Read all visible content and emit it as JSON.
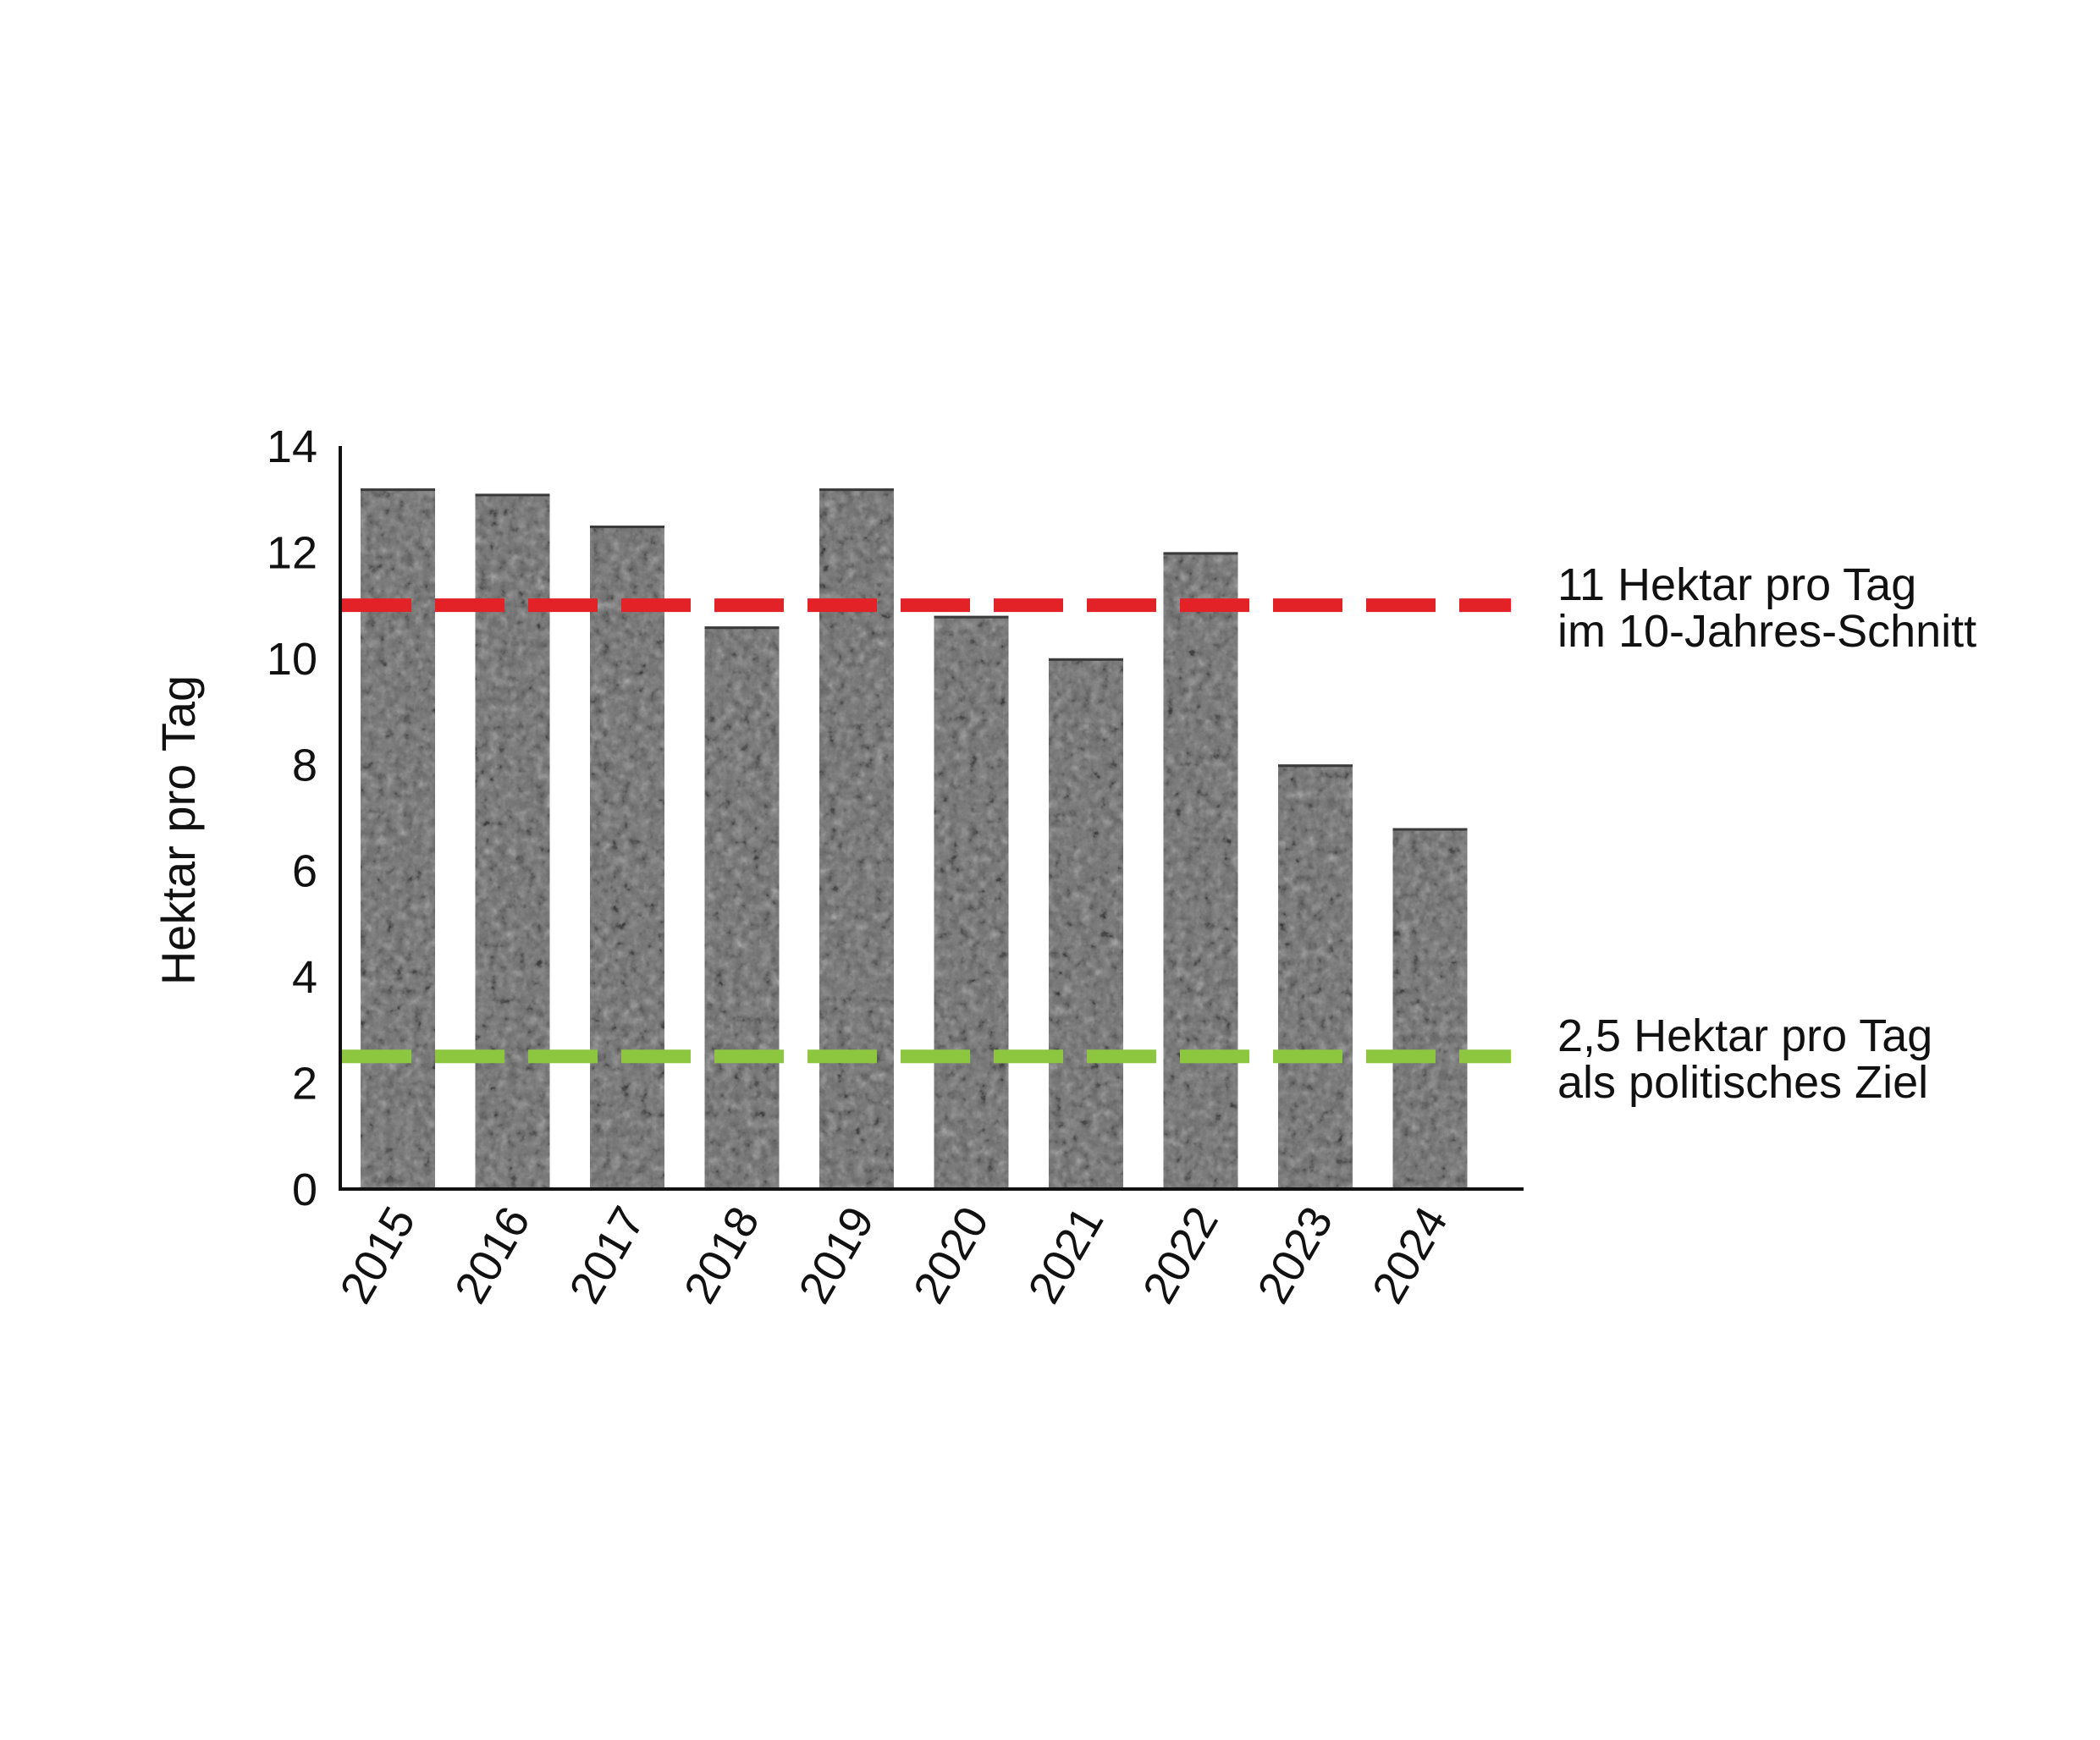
{
  "chart_data": {
    "type": "bar",
    "title": "",
    "xlabel": "",
    "ylabel": "Hektar pro Tag",
    "ylim": [
      0,
      14
    ],
    "yticks": [
      "0",
      "2",
      "4",
      "6",
      "8",
      "10",
      "12",
      "14"
    ],
    "categories": [
      "2015",
      "2016",
      "2017",
      "2018",
      "2019",
      "2020",
      "2021",
      "2022",
      "2023",
      "2024"
    ],
    "values": [
      13.2,
      13.1,
      12.5,
      10.6,
      13.2,
      10.8,
      10.0,
      12.0,
      8.0,
      6.8
    ],
    "bar_fill": "textured gray (#6e6e6e)",
    "grid": false,
    "reference_lines": [
      {
        "value": 11,
        "color": "#e32227",
        "style": "dashed",
        "label": [
          "11 Hektar pro Tag",
          "im 10-Jahres-Schnitt"
        ]
      },
      {
        "value": 2.5,
        "color": "#8dc63f",
        "style": "dashed",
        "label": [
          "2,5 Hektar pro Tag",
          "als politisches Ziel"
        ]
      }
    ]
  }
}
